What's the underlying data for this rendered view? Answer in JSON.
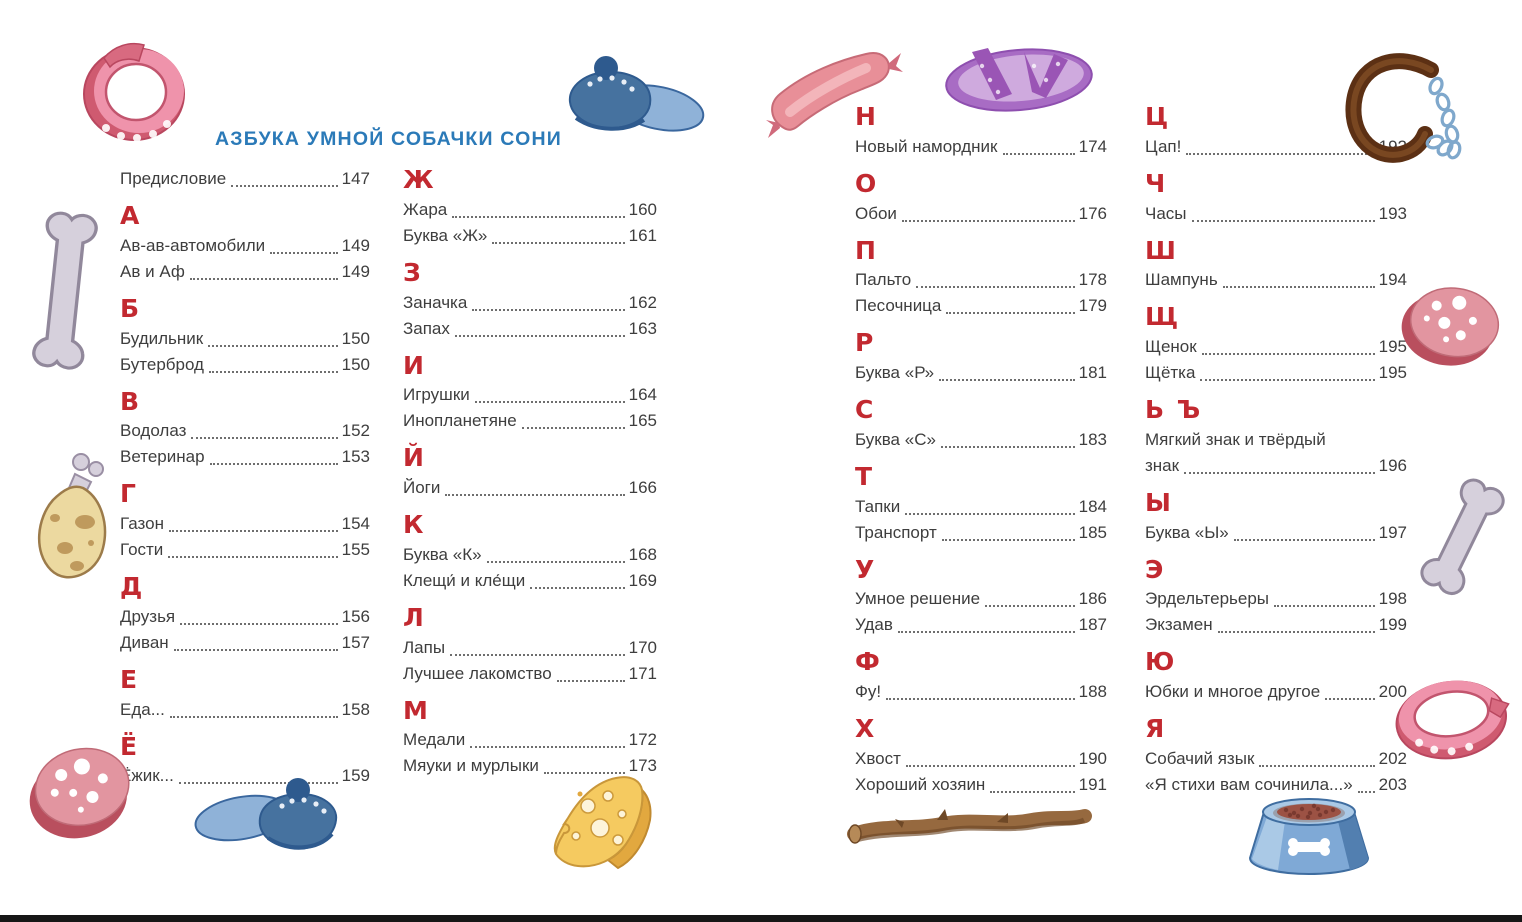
{
  "page": {
    "title": "АЗБУКА УМНОЙ СОБАЧКИ СОНИ",
    "colors": {
      "title": "#2b7ab8",
      "letter": "#c22930",
      "text": "#3e3e3e",
      "dots": "#6e6e6e"
    }
  },
  "columns": [
    {
      "sections": [
        {
          "letter": "",
          "entries": [
            {
              "label": "Предисловие",
              "page": "147"
            }
          ]
        },
        {
          "letter": "А",
          "entries": [
            {
              "label": "Ав-ав-автомобили",
              "page": "149"
            },
            {
              "label": "Ав и Аф",
              "page": "149"
            }
          ]
        },
        {
          "letter": "Б",
          "entries": [
            {
              "label": "Будильник",
              "page": "150"
            },
            {
              "label": "Бутерброд",
              "page": "150"
            }
          ]
        },
        {
          "letter": "В",
          "entries": [
            {
              "label": "Водолаз",
              "page": "152"
            },
            {
              "label": "Ветеринар",
              "page": "153"
            }
          ]
        },
        {
          "letter": "Г",
          "entries": [
            {
              "label": "Газон",
              "page": "154"
            },
            {
              "label": "Гости",
              "page": "155"
            }
          ]
        },
        {
          "letter": "Д",
          "entries": [
            {
              "label": "Друзья",
              "page": "156"
            },
            {
              "label": "Диван",
              "page": "157"
            }
          ]
        },
        {
          "letter": "Е",
          "entries": [
            {
              "label": "Еда...",
              "page": "158"
            }
          ]
        },
        {
          "letter": "Ё",
          "entries": [
            {
              "label": "Ёжик...",
              "page": "159"
            }
          ]
        }
      ]
    },
    {
      "sections": [
        {
          "letter": "Ж",
          "entries": [
            {
              "label": "Жара",
              "page": "160"
            },
            {
              "label": "Буква «Ж»",
              "page": "161"
            }
          ]
        },
        {
          "letter": "З",
          "entries": [
            {
              "label": "Заначка",
              "page": "162"
            },
            {
              "label": "Запах",
              "page": "163"
            }
          ]
        },
        {
          "letter": "И",
          "entries": [
            {
              "label": "Игрушки",
              "page": "164"
            },
            {
              "label": "Инопланетяне",
              "page": "165"
            }
          ]
        },
        {
          "letter": "Й",
          "entries": [
            {
              "label": "Йоги",
              "page": "166"
            }
          ]
        },
        {
          "letter": "К",
          "entries": [
            {
              "label": "Буква «К»",
              "page": "168"
            },
            {
              "label": "Клещи́ и кле́щи",
              "page": "169"
            }
          ]
        },
        {
          "letter": "Л",
          "entries": [
            {
              "label": "Лапы",
              "page": "170"
            },
            {
              "label": "Лучшее лакомство",
              "page": "171"
            }
          ]
        },
        {
          "letter": "М",
          "entries": [
            {
              "label": "Медали",
              "page": "172"
            },
            {
              "label": "Мяуки и мурлыки",
              "page": "173"
            }
          ]
        }
      ]
    },
    {
      "sections": [
        {
          "letter": "Н",
          "entries": [
            {
              "label": "Новый намордник",
              "page": "174"
            }
          ]
        },
        {
          "letter": "О",
          "entries": [
            {
              "label": "Обои",
              "page": "176"
            }
          ]
        },
        {
          "letter": "П",
          "entries": [
            {
              "label": "Пальто",
              "page": "178"
            },
            {
              "label": "Песочница",
              "page": "179"
            }
          ]
        },
        {
          "letter": "Р",
          "entries": [
            {
              "label": "Буква «Р»",
              "page": "181"
            }
          ]
        },
        {
          "letter": "С",
          "entries": [
            {
              "label": "Буква «С»",
              "page": "183"
            }
          ]
        },
        {
          "letter": "Т",
          "entries": [
            {
              "label": "Тапки",
              "page": "184"
            },
            {
              "label": "Транспорт",
              "page": "185"
            }
          ]
        },
        {
          "letter": "У",
          "entries": [
            {
              "label": "Умное решение",
              "page": "186"
            },
            {
              "label": "Удав",
              "page": "187"
            }
          ]
        },
        {
          "letter": "Ф",
          "entries": [
            {
              "label": "Фу!",
              "page": "188"
            }
          ]
        },
        {
          "letter": "Х",
          "entries": [
            {
              "label": "Хвост",
              "page": "190"
            },
            {
              "label": "Хороший хозяин",
              "page": "191"
            }
          ]
        }
      ]
    },
    {
      "sections": [
        {
          "letter": "Ц",
          "entries": [
            {
              "label": "Цап!",
              "page": "192"
            }
          ]
        },
        {
          "letter": "Ч",
          "entries": [
            {
              "label": "Часы",
              "page": "193"
            }
          ]
        },
        {
          "letter": "Ш",
          "entries": [
            {
              "label": "Шампунь",
              "page": "194"
            }
          ]
        },
        {
          "letter": "Щ",
          "entries": [
            {
              "label": "Щенок",
              "page": "195"
            },
            {
              "label": "Щётка",
              "page": "195"
            }
          ]
        },
        {
          "letter": "Ь Ъ",
          "entries": [
            {
              "label": "Мягкий знак и твёрдый",
              "page": ""
            },
            {
              "label": "знак",
              "page": "196"
            }
          ]
        },
        {
          "letter": "Ы",
          "entries": [
            {
              "label": "Буква «Ы»",
              "page": "197"
            }
          ]
        },
        {
          "letter": "Э",
          "entries": [
            {
              "label": "Эрдельтерьеры",
              "page": "198"
            },
            {
              "label": "Экзамен",
              "page": "199"
            }
          ]
        },
        {
          "letter": "Ю",
          "entries": [
            {
              "label": "Юбки и многое другое",
              "page": "200"
            }
          ]
        },
        {
          "letter": "Я",
          "entries": [
            {
              "label": "Собачий язык",
              "page": "202"
            },
            {
              "label": "«Я стихи вам сочинила...»",
              "page": "203"
            }
          ]
        }
      ]
    }
  ],
  "illustrations": [
    "pink-dog-collar",
    "blue-slipper",
    "whole-sausage",
    "purple-sandal",
    "leather-muzzle-with-chain",
    "dog-bone",
    "chicken-drumstick",
    "sausage-slice",
    "blue-slipper",
    "cheese-wedge",
    "wooden-stick",
    "dog-food-bowl",
    "sausage-slice",
    "dog-bone",
    "pink-dog-collar"
  ]
}
